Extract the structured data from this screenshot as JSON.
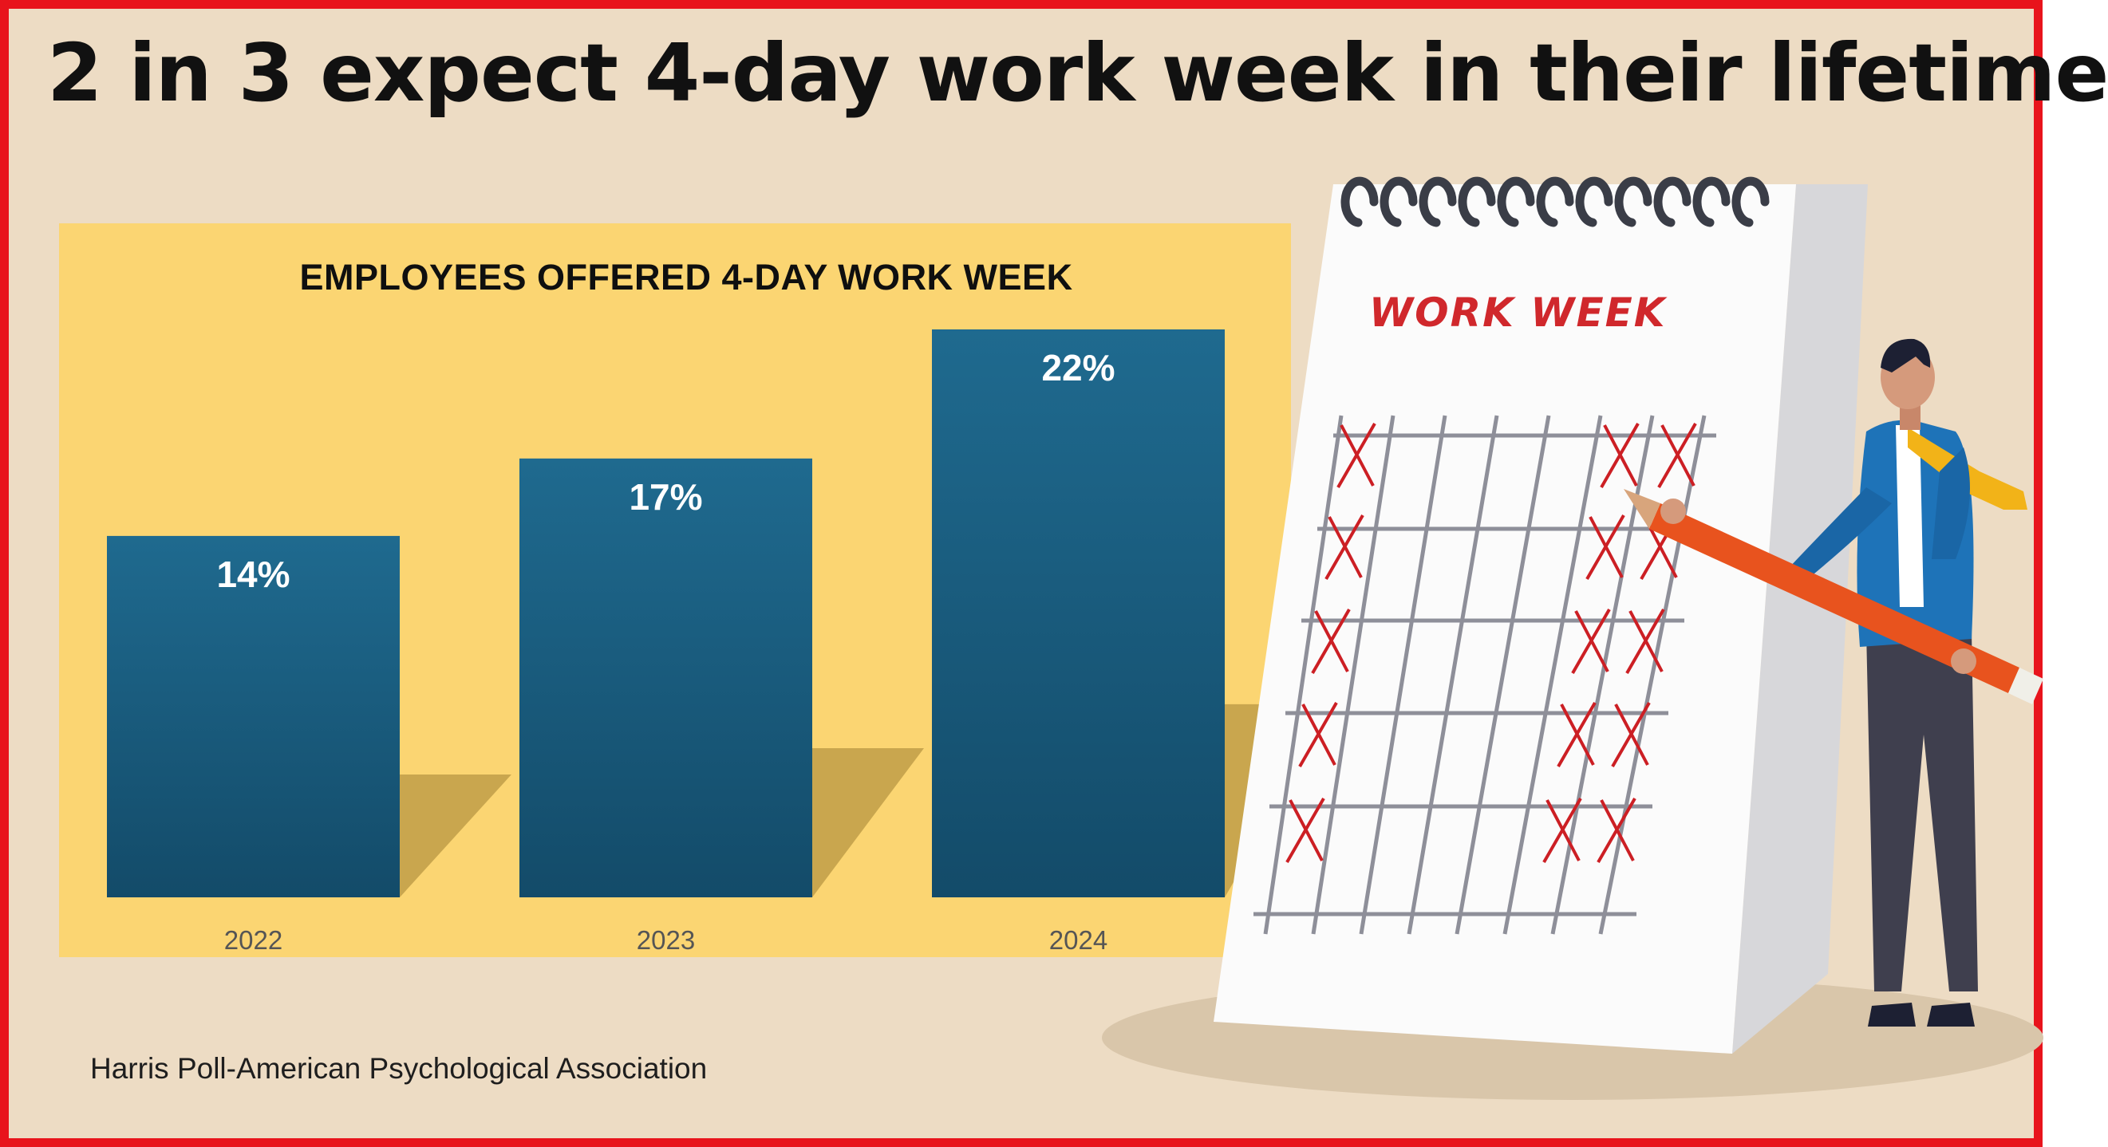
{
  "headline": "2 in 3 expect 4-day work week in their lifetime",
  "source": "Harris Poll-American Psychological Association",
  "calendar_label": "WORK WEEK",
  "colors": {
    "frame": "#e8141c",
    "background": "#eddcc4",
    "chart_panel": "#fbd572",
    "bar_top": "#1f6a8f",
    "bar_bottom": "#134b69",
    "calendar_marks": "#cc1f24"
  },
  "chart_data": {
    "type": "bar",
    "title": "EMPLOYEES OFFERED 4-DAY WORK WEEK",
    "categories": [
      "2022",
      "2023",
      "2024"
    ],
    "values": [
      14,
      17,
      22
    ],
    "value_labels": [
      "14%",
      "17%",
      "22%"
    ],
    "xlabel": "",
    "ylabel": "",
    "ylim": [
      0,
      22
    ],
    "grid": false,
    "legend": "none"
  }
}
